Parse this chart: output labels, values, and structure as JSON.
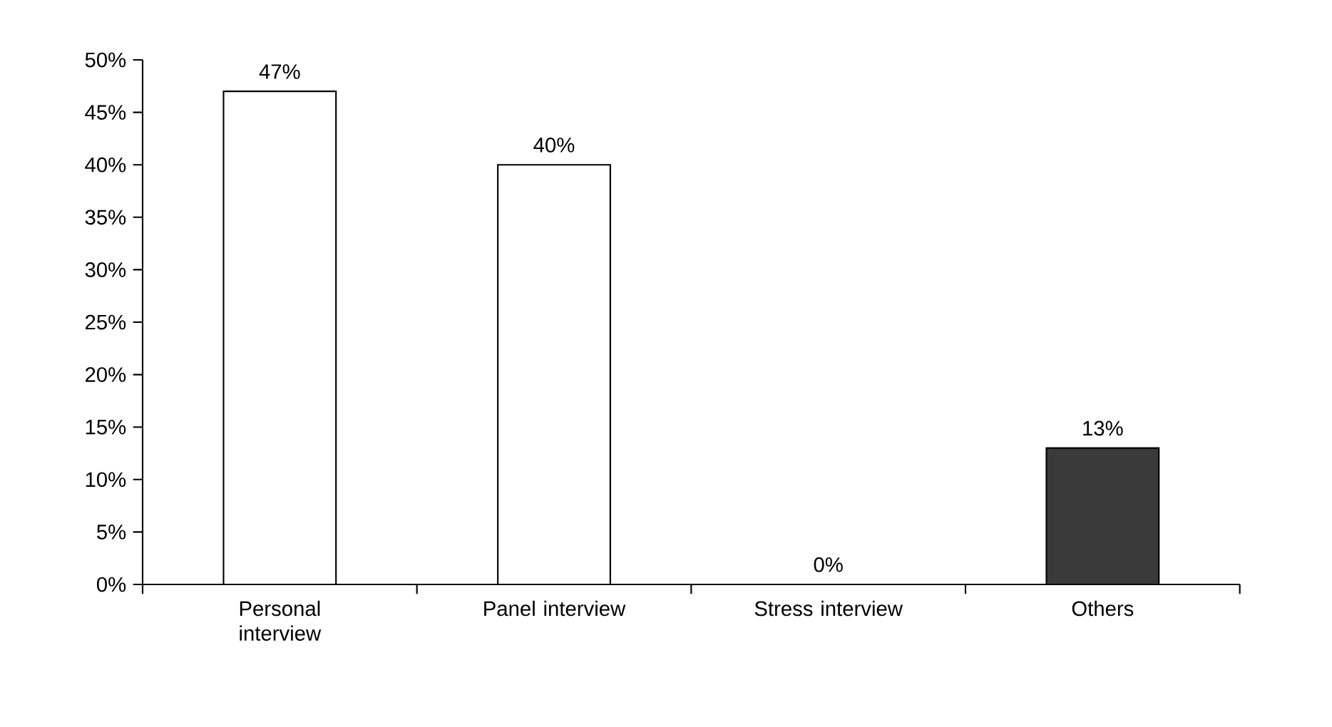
{
  "chart_data": {
    "type": "bar",
    "categories": [
      "Personal interview",
      "Panel interview",
      "Stress interview",
      "Others"
    ],
    "values": [
      47,
      40,
      0,
      13
    ],
    "colors": [
      "#ffffff",
      "#ffffff",
      "#ffffff",
      "#3a3a3a"
    ],
    "value_labels": [
      "47%",
      "40%",
      "0%",
      "13%"
    ],
    "ylim": [
      0,
      50
    ],
    "yticks": [
      {
        "value": 0,
        "label": "0%"
      },
      {
        "value": 5,
        "label": "5%"
      },
      {
        "value": 10,
        "label": "10%"
      },
      {
        "value": 15,
        "label": "15%"
      },
      {
        "value": 20,
        "label": "20%"
      },
      {
        "value": 25,
        "label": "25%"
      },
      {
        "value": 30,
        "label": "30%"
      },
      {
        "value": 35,
        "label": "35%"
      },
      {
        "value": 40,
        "label": "40%"
      },
      {
        "value": 45,
        "label": "45%"
      },
      {
        "value": 50,
        "label": "50%"
      }
    ],
    "grid": false
  }
}
